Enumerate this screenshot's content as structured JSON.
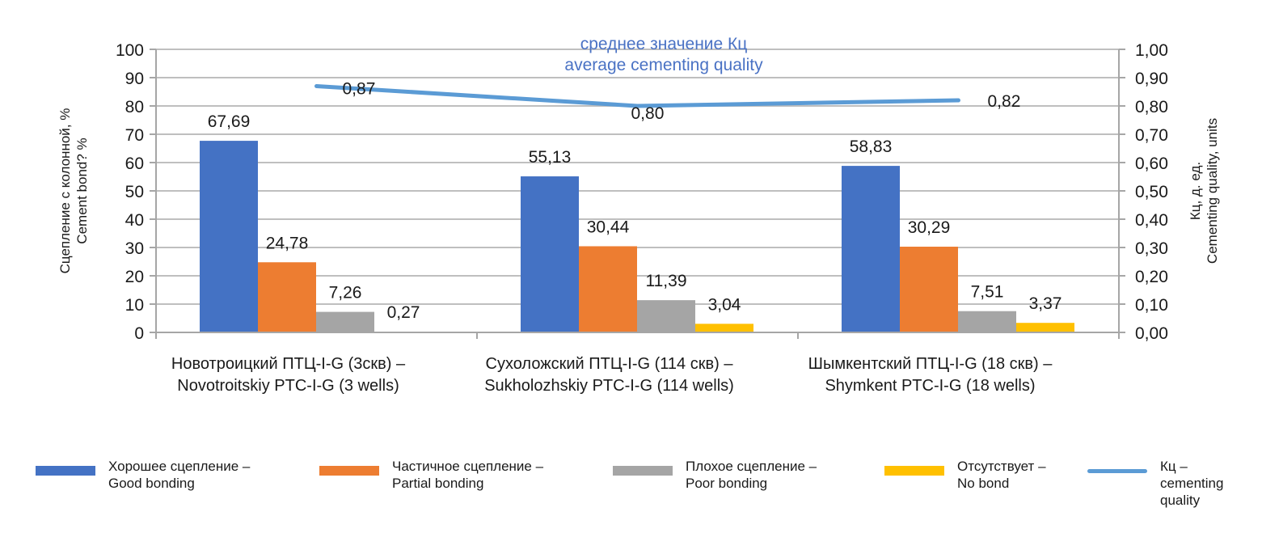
{
  "chart_data": {
    "type": "bar",
    "title": "",
    "annotation": [
      "среднее значение Кц",
      "average cementing quality"
    ],
    "categories": [
      [
        "Новотроицкий ПТЦ-I-G (3скв) –",
        "Novotroitskiy PTC-I-G (3 wells)"
      ],
      [
        "Сухоложский ПТЦ-I-G (114 скв) –",
        "Sukholozhskiy PTC-I-G (114 wells)"
      ],
      [
        "Шымкентский ПТЦ-I-G (18 скв) –",
        "Shymkent PTC-I-G (18 wells)"
      ]
    ],
    "ylabel": [
      "Сцепление с колонной, %",
      "Cement bond? %"
    ],
    "y2label": [
      "Кц, д. ед.",
      "Cementing quality, units"
    ],
    "ylim": [
      0,
      100
    ],
    "y2lim": [
      0,
      1
    ],
    "yticks": [
      "0",
      "10",
      "20",
      "30",
      "40",
      "50",
      "60",
      "70",
      "80",
      "90",
      "100"
    ],
    "y2ticks": [
      "0,00",
      "0,10",
      "0,20",
      "0,30",
      "0,40",
      "0,50",
      "0,60",
      "0,70",
      "0,80",
      "0,90",
      "1,00"
    ],
    "grid": true,
    "legend_position": "bottom",
    "series": [
      {
        "name": [
          "Хорошее сцепление –",
          "Good bonding"
        ],
        "type": "bar",
        "axis": "left",
        "color": "#4472c4",
        "values": [
          67.69,
          55.13,
          58.83
        ],
        "labels": [
          "67,69",
          "55,13",
          "58,83"
        ]
      },
      {
        "name": [
          "Частичное сцепление –",
          "Partial bonding"
        ],
        "type": "bar",
        "axis": "left",
        "color": "#ed7d31",
        "values": [
          24.78,
          30.44,
          30.29
        ],
        "labels": [
          "24,78",
          "30,44",
          "30,29"
        ]
      },
      {
        "name": [
          "Плохое сцепление –",
          "Poor bonding"
        ],
        "type": "bar",
        "axis": "left",
        "color": "#a5a5a5",
        "values": [
          7.26,
          11.39,
          7.51
        ],
        "labels": [
          "7,26",
          "11,39",
          "7,51"
        ]
      },
      {
        "name": [
          "Отсутствует –",
          "No bond"
        ],
        "type": "bar",
        "axis": "left",
        "color": "#ffc000",
        "values": [
          0.27,
          3.04,
          3.37
        ],
        "labels": [
          "0,27",
          "3,04",
          "3,37"
        ]
      },
      {
        "name": [
          "Кц –",
          "cementing",
          "quality"
        ],
        "type": "line",
        "axis": "right",
        "color": "#5b9bd5",
        "values": [
          0.87,
          0.8,
          0.82
        ],
        "labels": [
          "0,87",
          "0,80",
          "0,82"
        ]
      }
    ]
  }
}
